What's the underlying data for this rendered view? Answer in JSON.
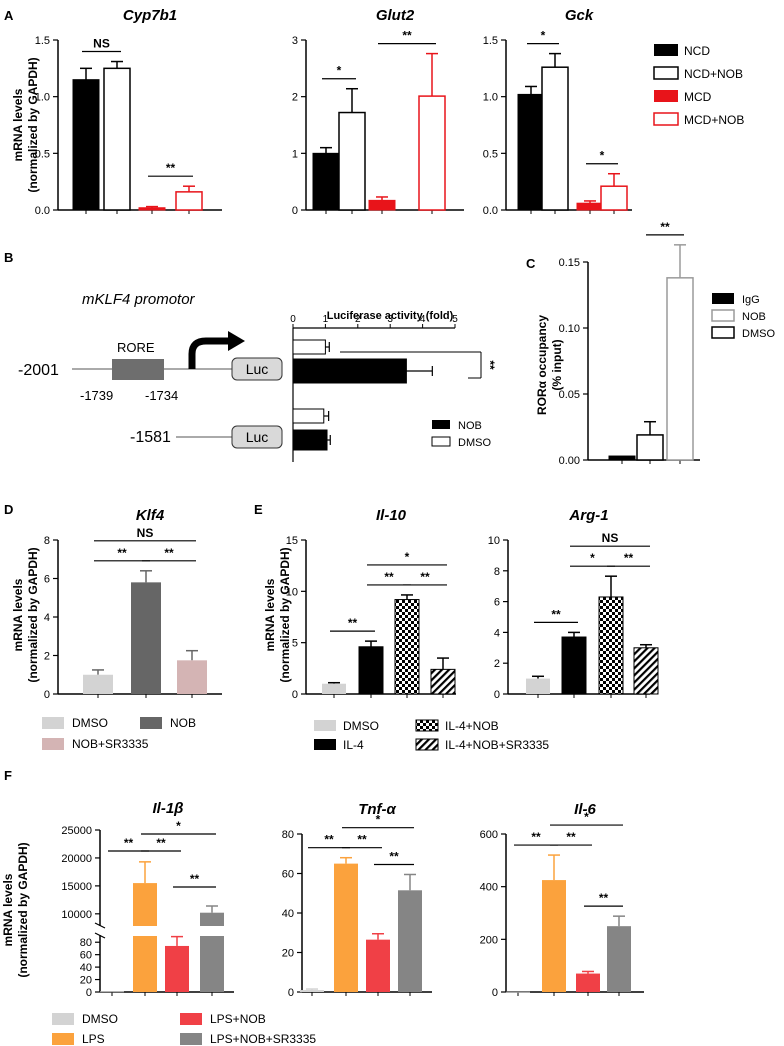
{
  "panel_labels": [
    "A",
    "B",
    "C",
    "D",
    "E",
    "F"
  ],
  "palettes": {
    "A": {
      "NCD": "#000000",
      "NCD+NOB": "#ffffff",
      "MCD": "#e8141a",
      "MCD+NOB": "#ffffff",
      "MCD+NOB_edge": "#e8141a"
    },
    "C": {
      "IgG": "#000000",
      "NOB": "#ffffff",
      "NOB_edge": "#9a9a9a",
      "DMSO": "#ffffff"
    },
    "D": {
      "DMSO": "#d3d3d3",
      "NOB": "#666666",
      "NOB+SR3335": "#d4b4b4"
    },
    "E": {
      "DMSO": "#d3d3d3",
      "IL-4": "#000000"
    },
    "F": {
      "DMSO": "#d3d3d3",
      "LPS": "#fba23d",
      "LPS+NOB": "#f04046",
      "LPS+NOB+SR3335": "#858585"
    }
  },
  "legend_A": [
    "NCD",
    "NCD+NOB",
    "MCD",
    "MCD+NOB"
  ],
  "legend_B": [
    "NOB",
    "DMSO"
  ],
  "legend_C": [
    "IgG",
    "NOB",
    "DMSO"
  ],
  "legend_D": [
    "DMSO",
    "NOB",
    "NOB+SR3335"
  ],
  "legend_E": [
    "DMSO",
    "IL-4+NOB",
    "IL-4",
    "IL-4+NOB+SR3335"
  ],
  "legend_F": [
    "DMSO",
    "LPS+NOB",
    "LPS",
    "LPS+NOB+SR3335"
  ],
  "ylabel_mrna": [
    "mRNA levels",
    "(normalized by GAPDH)"
  ],
  "panel_B": {
    "title": "mKLF4 promotor",
    "title_prefix": "m",
    "title_rest": "KLF4 promotor",
    "rore": "RORE",
    "luc": "Luc",
    "pos1": "-2001",
    "pos2": "-1739",
    "pos3": "-1734",
    "pos4": "-1581",
    "axis_title": "Luciferase activity (fold)",
    "sig": "**"
  },
  "chart_data": [
    {
      "panel": "A",
      "type": "bar",
      "title": "Cyp7b1",
      "ylabel": "mRNA levels (normalized by GAPDH)",
      "categories": [
        "NCD",
        "NCD+NOB",
        "MCD",
        "MCD+NOB"
      ],
      "values": [
        1.15,
        1.25,
        0.02,
        0.16
      ],
      "errors": [
        0.1,
        0.06,
        0.01,
        0.05
      ],
      "ylim": [
        0,
        1.5
      ],
      "ticks": [
        0.0,
        0.5,
        1.0,
        1.5
      ],
      "tick_labels": [
        "0.0",
        "0.5",
        "1.0",
        "1.5"
      ],
      "sig": [
        {
          "a": 0,
          "b": 1,
          "label": "NS"
        },
        {
          "a": 2,
          "b": 3,
          "label": "**"
        }
      ]
    },
    {
      "panel": "A",
      "type": "bar",
      "title": "Glut2",
      "categories": [
        "NCD",
        "NCD+NOB",
        "MCD",
        "MCD+NOB"
      ],
      "values": [
        1.0,
        1.72,
        0.17,
        2.01
      ],
      "errors": [
        0.1,
        0.42,
        0.06,
        0.75
      ],
      "ylim": [
        0,
        3
      ],
      "ticks": [
        0,
        1,
        2,
        3
      ],
      "tick_labels": [
        "0",
        "1",
        "2",
        "3"
      ],
      "sig": [
        {
          "a": 0,
          "b": 1,
          "label": "*"
        },
        {
          "a": 2,
          "b": 3,
          "label": "**"
        }
      ]
    },
    {
      "panel": "A",
      "type": "bar",
      "title": "Gck",
      "categories": [
        "NCD",
        "NCD+NOB",
        "MCD",
        "MCD+NOB"
      ],
      "values": [
        1.02,
        1.26,
        0.06,
        0.21
      ],
      "errors": [
        0.07,
        0.12,
        0.02,
        0.11
      ],
      "ylim": [
        0,
        1.5
      ],
      "ticks": [
        0.0,
        0.5,
        1.0,
        1.5
      ],
      "tick_labels": [
        "0.0",
        "0.5",
        "1.0",
        "1.5"
      ],
      "sig": [
        {
          "a": 0,
          "b": 1,
          "label": "*"
        },
        {
          "a": 2,
          "b": 3,
          "label": "*"
        }
      ]
    },
    {
      "panel": "B",
      "type": "bar",
      "orientation": "horizontal",
      "title": "Luciferase activity (fold)",
      "categories": [
        "-2001 DMSO",
        "-2001 NOB",
        "-1581 DMSO",
        "-1581 NOB"
      ],
      "series_of_bar": [
        "DMSO",
        "NOB",
        "DMSO",
        "NOB"
      ],
      "values": [
        1.0,
        3.5,
        0.95,
        1.05
      ],
      "errors": [
        0.12,
        0.8,
        0.15,
        0.1
      ],
      "xlim": [
        0,
        5
      ],
      "ticks": [
        0,
        1,
        2,
        3,
        4,
        5
      ],
      "tick_labels": [
        "0",
        "1",
        "2",
        "3",
        "4",
        "5"
      ]
    },
    {
      "panel": "C",
      "type": "bar",
      "ylabel": "RORα occupancy (% input)",
      "ylabel_lines": [
        "RORα occupancy",
        "(% input)"
      ],
      "categories": [
        "IgG",
        "DMSO",
        "NOB"
      ],
      "values": [
        0.003,
        0.019,
        0.138
      ],
      "errors": [
        0.0,
        0.01,
        0.025
      ],
      "ylim": [
        0,
        0.15
      ],
      "ticks": [
        0.0,
        0.05,
        0.1,
        0.15
      ],
      "tick_labels": [
        "0.00",
        "0.05",
        "0.10",
        "0.15"
      ],
      "sig": [
        {
          "a": 1,
          "b": 2,
          "label": "**"
        }
      ]
    },
    {
      "panel": "D",
      "type": "bar",
      "title": "Klf4",
      "categories": [
        "DMSO",
        "NOB",
        "NOB+SR3335"
      ],
      "values": [
        1.0,
        5.8,
        1.75
      ],
      "errors": [
        0.25,
        0.6,
        0.5
      ],
      "ylim": [
        0,
        8
      ],
      "ticks": [
        0,
        2,
        4,
        6,
        8
      ],
      "tick_labels": [
        "0",
        "2",
        "4",
        "6",
        "8"
      ],
      "sig": [
        {
          "a": 0,
          "b": 1,
          "label": "**"
        },
        {
          "a": 1,
          "b": 2,
          "label": "**"
        },
        {
          "a": 0,
          "b": 2,
          "label": "NS"
        }
      ]
    },
    {
      "panel": "E",
      "type": "bar",
      "title": "Il-10",
      "categories": [
        "DMSO",
        "IL-4",
        "IL-4+NOB",
        "IL-4+NOB+SR3335"
      ],
      "values": [
        1.0,
        4.6,
        9.2,
        2.4
      ],
      "errors": [
        0.1,
        0.55,
        0.45,
        1.1
      ],
      "ylim": [
        0,
        15
      ],
      "ticks": [
        0,
        5,
        10,
        15
      ],
      "tick_labels": [
        "0",
        "5",
        "10",
        "15"
      ],
      "sig": [
        {
          "a": 0,
          "b": 1,
          "label": "**"
        },
        {
          "a": 1,
          "b": 2,
          "label": "**"
        },
        {
          "a": 2,
          "b": 3,
          "label": "**"
        },
        {
          "a": 1,
          "b": 3,
          "label": "*"
        }
      ]
    },
    {
      "panel": "E",
      "type": "bar",
      "title": "Arg-1",
      "categories": [
        "DMSO",
        "IL-4",
        "IL-4+NOB",
        "IL-4+NOB+SR3335"
      ],
      "values": [
        1.0,
        3.7,
        6.3,
        3.0
      ],
      "errors": [
        0.15,
        0.3,
        1.35,
        0.2
      ],
      "ylim": [
        0,
        10
      ],
      "ticks": [
        0,
        2,
        4,
        6,
        8,
        10
      ],
      "tick_labels": [
        "0",
        "2",
        "4",
        "6",
        "8",
        "10"
      ],
      "sig": [
        {
          "a": 0,
          "b": 1,
          "label": "**"
        },
        {
          "a": 1,
          "b": 2,
          "label": "*"
        },
        {
          "a": 2,
          "b": 3,
          "label": "**"
        },
        {
          "a": 1,
          "b": 3,
          "label": "NS"
        }
      ]
    },
    {
      "panel": "F",
      "type": "bar",
      "title": "Il-1β",
      "broken_axis": true,
      "categories": [
        "DMSO",
        "LPS",
        "LPS+NOB",
        "LPS+NOB+SR3335"
      ],
      "values": [
        1,
        15500,
        74,
        10200
      ],
      "errors": [
        0,
        3800,
        15,
        1200
      ],
      "upper_ylim": [
        10000,
        25000
      ],
      "lower_ylim": [
        0,
        90
      ],
      "upper_ticks": [
        10000,
        15000,
        20000,
        25000
      ],
      "upper_tick_labels": [
        "10000",
        "15000",
        "20000",
        "25000"
      ],
      "lower_ticks": [
        0,
        20,
        40,
        60,
        80
      ],
      "lower_tick_labels": [
        "0",
        "20",
        "40",
        "60",
        "80"
      ],
      "sig": [
        {
          "a": 0,
          "b": 1,
          "label": "**"
        },
        {
          "a": 1,
          "b": 2,
          "label": "**"
        },
        {
          "a": 2,
          "b": 3,
          "label": "**"
        },
        {
          "a": 1,
          "b": 3,
          "label": "*"
        }
      ]
    },
    {
      "panel": "F",
      "type": "bar",
      "title": "Tnf-α",
      "categories": [
        "DMSO",
        "LPS",
        "LPS+NOB",
        "LPS+NOB+SR3335"
      ],
      "values": [
        1,
        65,
        26.5,
        51.5
      ],
      "errors": [
        0.5,
        3,
        3,
        8
      ],
      "ylim": [
        0,
        80
      ],
      "ticks": [
        0,
        20,
        40,
        60,
        80
      ],
      "tick_labels": [
        "0",
        "20",
        "40",
        "60",
        "80"
      ],
      "sig": [
        {
          "a": 0,
          "b": 1,
          "label": "**"
        },
        {
          "a": 1,
          "b": 2,
          "label": "**"
        },
        {
          "a": 2,
          "b": 3,
          "label": "**"
        },
        {
          "a": 1,
          "b": 3,
          "label": "*"
        }
      ]
    },
    {
      "panel": "F",
      "type": "bar",
      "title": "Il-6",
      "categories": [
        "DMSO",
        "LPS",
        "LPS+NOB",
        "LPS+NOB+SR3335"
      ],
      "values": [
        1,
        425,
        70,
        250
      ],
      "errors": [
        0,
        95,
        8,
        38
      ],
      "ylim": [
        0,
        600
      ],
      "ticks": [
        0,
        200,
        400,
        600
      ],
      "tick_labels": [
        "0",
        "200",
        "400",
        "600"
      ],
      "sig": [
        {
          "a": 0,
          "b": 1,
          "label": "**"
        },
        {
          "a": 1,
          "b": 2,
          "label": "**"
        },
        {
          "a": 2,
          "b": 3,
          "label": "**"
        },
        {
          "a": 1,
          "b": 3,
          "label": "*"
        }
      ]
    }
  ]
}
